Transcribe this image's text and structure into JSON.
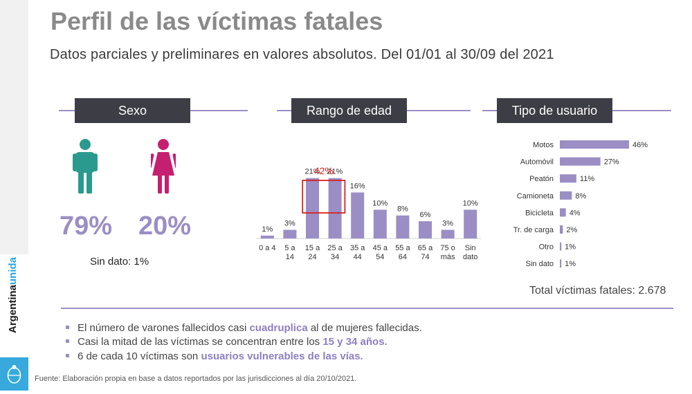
{
  "brand": {
    "part1": "Argentina",
    "part2": "unida"
  },
  "title": "Perfil de las víctimas fatales",
  "subtitle": "Datos parciales y preliminares en valores absolutos. Del 01/01 al 30/09 del 2021",
  "sections": {
    "sexo": "Sexo",
    "edad": "Rango de edad",
    "usuario": "Tipo de usuario"
  },
  "sexo": {
    "male_pct": "79%",
    "female_pct": "20%",
    "sin_dato": "Sin dato: 1%"
  },
  "colors": {
    "accent": "#9b8ec4",
    "bar": "#9b8ec4",
    "male": "#2a9a8e",
    "female": "#c4206f",
    "highlight": "#d9211e",
    "box": "#3d3d45"
  },
  "chart_data": [
    {
      "type": "bar",
      "title": "Rango de edad",
      "categories": [
        [
          "0 a 4"
        ],
        [
          "5 a",
          "14"
        ],
        [
          "15 a",
          "24"
        ],
        [
          "25 a",
          "34"
        ],
        [
          "35 a",
          "44"
        ],
        [
          "45 a",
          "54"
        ],
        [
          "55 a",
          "64"
        ],
        [
          "65 a",
          "74"
        ],
        [
          "75 o",
          "más"
        ],
        [
          "Sin",
          "dato"
        ]
      ],
      "values": [
        1,
        3,
        21,
        21,
        16,
        10,
        8,
        6,
        3,
        10
      ],
      "labels": [
        "1%",
        "3%",
        "21%",
        "21%",
        "16%",
        "10%",
        "8%",
        "6%",
        "3%",
        "10%"
      ],
      "annotation": {
        "text": "42%",
        "categories": [
          2,
          3
        ]
      },
      "ylim": [
        0,
        25
      ]
    },
    {
      "type": "bar",
      "orientation": "horizontal",
      "title": "Tipo de usuario",
      "categories": [
        "Motos",
        "Automóvil",
        "Peatón",
        "Camioneta",
        "Bicicleta",
        "Tr. de carga",
        "Otro",
        "Sin dato"
      ],
      "values": [
        46,
        27,
        11,
        8,
        4,
        2,
        1,
        1
      ],
      "labels": [
        "46%",
        "27%",
        "11%",
        "8%",
        "4%",
        "2%",
        "1%",
        "1%"
      ],
      "xlim": [
        0,
        50
      ]
    }
  ],
  "total": "Total víctimas fatales: 2.678",
  "bullets": [
    {
      "pre": "El número de varones fallecidos casi ",
      "hl": "cuadruplica",
      "post": " al de mujeres fallecidas."
    },
    {
      "pre": "Casi la mitad de las víctimas se concentran entre los ",
      "hl": "15 y 34 años.",
      "post": ""
    },
    {
      "pre": "6 de cada 10 víctimas son ",
      "hl": "usuarios vulnerables de las vías.",
      "post": ""
    }
  ],
  "source": "Fuente: Elaboración propia en base a datos reportados por las jurisdicciones al día 20/10/2021."
}
